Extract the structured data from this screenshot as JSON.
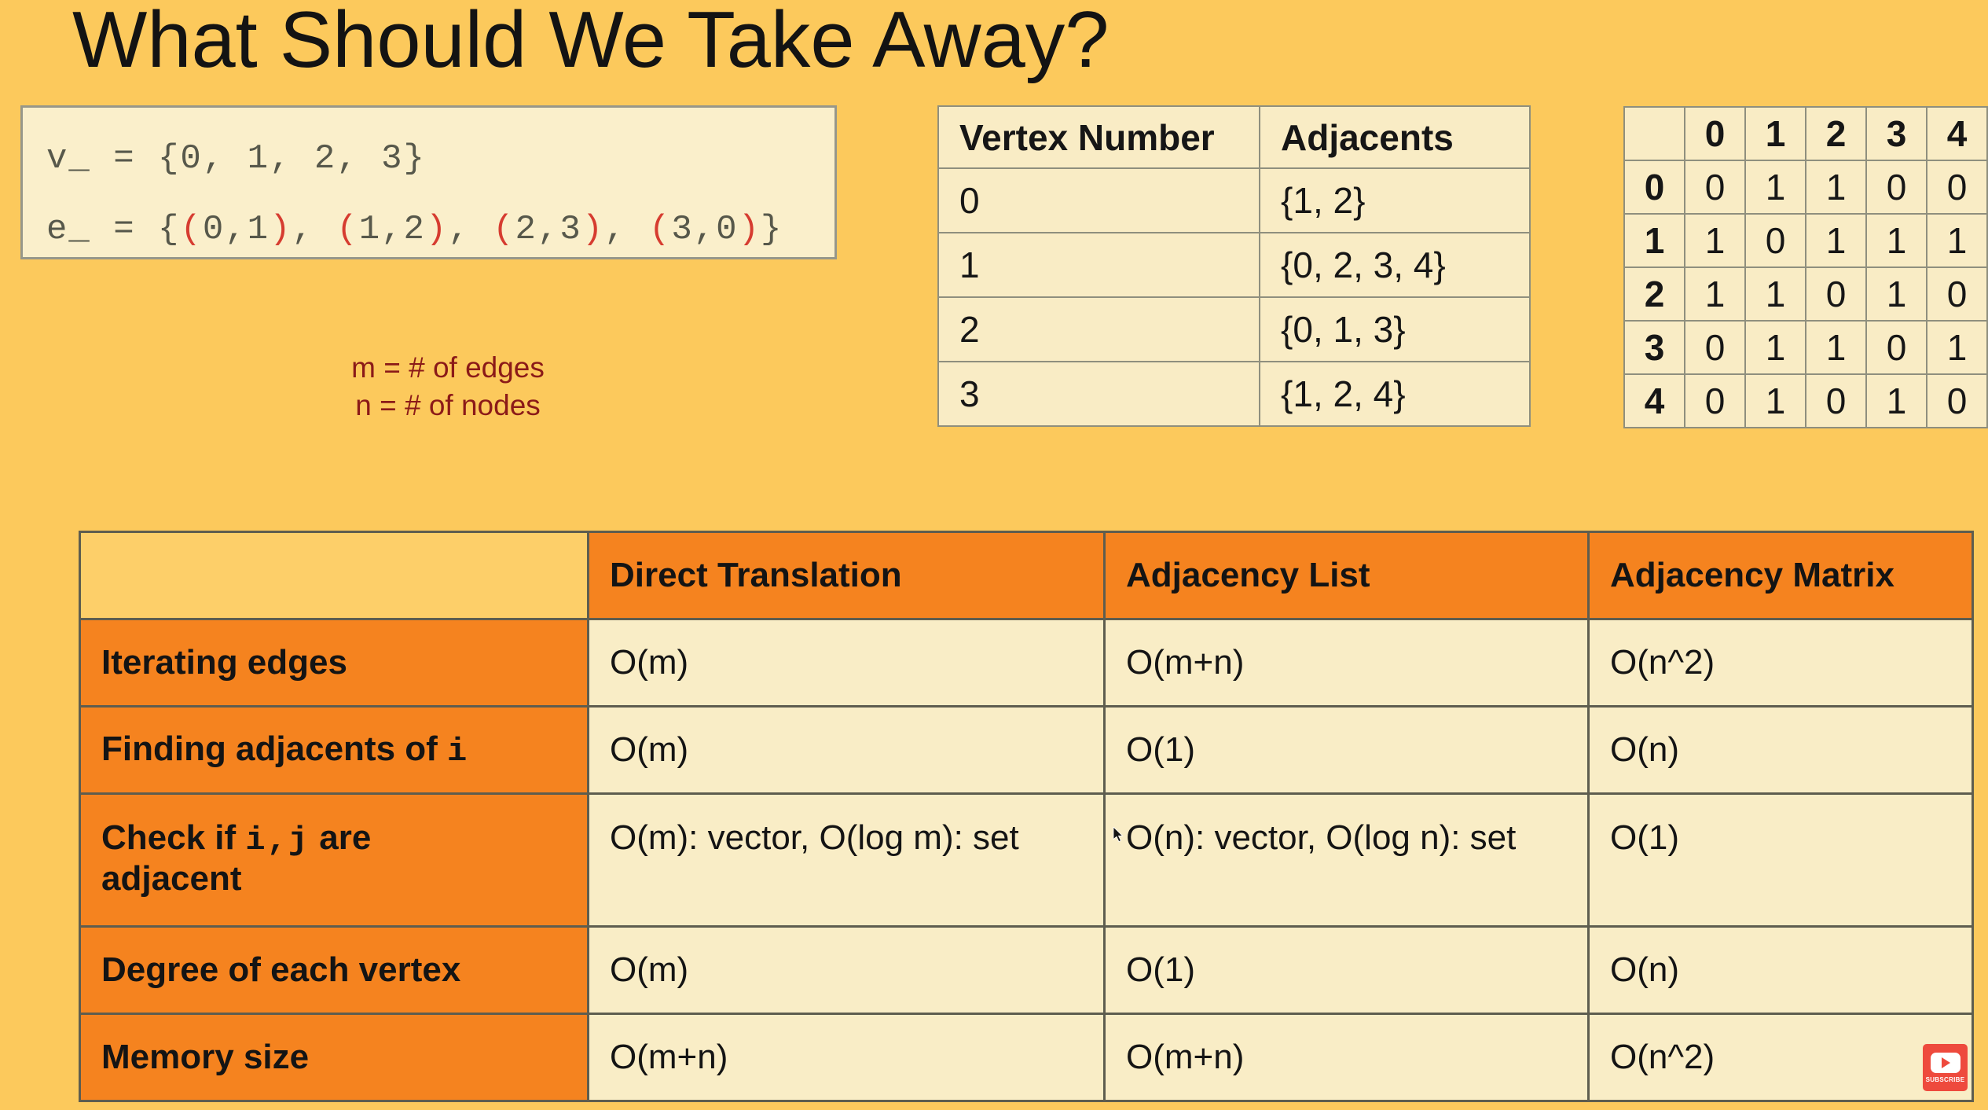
{
  "title": "What Should We Take Away?",
  "colors": {
    "background": "#FCC95C",
    "cream_cell": "#F9EDC6",
    "orange_cell": "#F5831F",
    "corner_yellow": "#FDCF69",
    "dark_red_text": "#8B1A18",
    "paren_red": "#D63C30",
    "code_text": "#57584B",
    "subscribe_red": "#EE4A3D"
  },
  "code_box": {
    "line1": [
      {
        "t": "v_ = {0, 1, 2, 3}",
        "c": "d"
      }
    ],
    "line2": [
      {
        "t": "e_ = {",
        "c": "d"
      },
      {
        "t": "(",
        "c": "r"
      },
      {
        "t": "0,1",
        "c": "d"
      },
      {
        "t": ")",
        "c": "r"
      },
      {
        "t": ", ",
        "c": "d"
      },
      {
        "t": "(",
        "c": "r"
      },
      {
        "t": "1,2",
        "c": "d"
      },
      {
        "t": ")",
        "c": "r"
      },
      {
        "t": ", ",
        "c": "d"
      },
      {
        "t": "(",
        "c": "r"
      },
      {
        "t": "2,3",
        "c": "d"
      },
      {
        "t": ")",
        "c": "r"
      },
      {
        "t": ", ",
        "c": "d"
      },
      {
        "t": "(",
        "c": "r"
      },
      {
        "t": "3,0",
        "c": "d"
      },
      {
        "t": ")",
        "c": "r"
      },
      {
        "t": "}",
        "c": "d"
      }
    ]
  },
  "legend": {
    "line1": "m = # of edges",
    "line2": "n = # of nodes"
  },
  "adjacency_list_table": {
    "headers": [
      "Vertex Number",
      "Adjacents"
    ],
    "rows": [
      [
        "0",
        "{1, 2}"
      ],
      [
        "1",
        "{0, 2, 3, 4}"
      ],
      [
        "2",
        "{0, 1, 3}"
      ],
      [
        "3",
        "{1, 2, 4}"
      ]
    ]
  },
  "adjacency_matrix": {
    "corner": "",
    "col_headers": [
      "0",
      "1",
      "2",
      "3",
      "4"
    ],
    "rows": [
      {
        "label": "0",
        "values": [
          "0",
          "1",
          "1",
          "0",
          "0"
        ]
      },
      {
        "label": "1",
        "values": [
          "1",
          "0",
          "1",
          "1",
          "1"
        ]
      },
      {
        "label": "2",
        "values": [
          "1",
          "1",
          "0",
          "1",
          "0"
        ]
      },
      {
        "label": "3",
        "values": [
          "0",
          "1",
          "1",
          "0",
          "1"
        ]
      },
      {
        "label": "4",
        "values": [
          "0",
          "1",
          "0",
          "1",
          "0"
        ]
      }
    ]
  },
  "comparison_table": {
    "corner": "",
    "col_headers": [
      "Direct Translation",
      "Adjacency List",
      "Adjacency Matrix"
    ],
    "rows": [
      {
        "label": [
          {
            "t": "Iterating edges",
            "m": false
          }
        ],
        "cells": [
          "O(m)",
          "O(m+n)",
          "O(n^2)"
        ],
        "tall": false
      },
      {
        "label": [
          {
            "t": "Finding adjacents of ",
            "m": false
          },
          {
            "t": "i",
            "m": true
          }
        ],
        "cells": [
          "O(m)",
          "O(1)",
          "O(n)"
        ],
        "tall": false
      },
      {
        "label": [
          {
            "t": "Check if ",
            "m": false
          },
          {
            "t": "i,j",
            "m": true
          },
          {
            "t": " are",
            "m": false
          },
          {
            "br": true
          },
          {
            "t": "adjacent",
            "m": false
          }
        ],
        "cells": [
          "O(m): vector, O(log m): set",
          "O(n): vector, O(log n): set",
          "O(1)"
        ],
        "tall": true
      },
      {
        "label": [
          {
            "t": "Degree of each vertex",
            "m": false
          }
        ],
        "cells": [
          "O(m)",
          "O(1)",
          "O(n)"
        ],
        "tall": false
      },
      {
        "label": [
          {
            "t": "Memory size",
            "m": false
          }
        ],
        "cells": [
          "O(m+n)",
          "O(m+n)",
          "O(n^2)"
        ],
        "tall": false
      }
    ]
  },
  "subscribe": {
    "label": "SUBSCRIBE"
  }
}
